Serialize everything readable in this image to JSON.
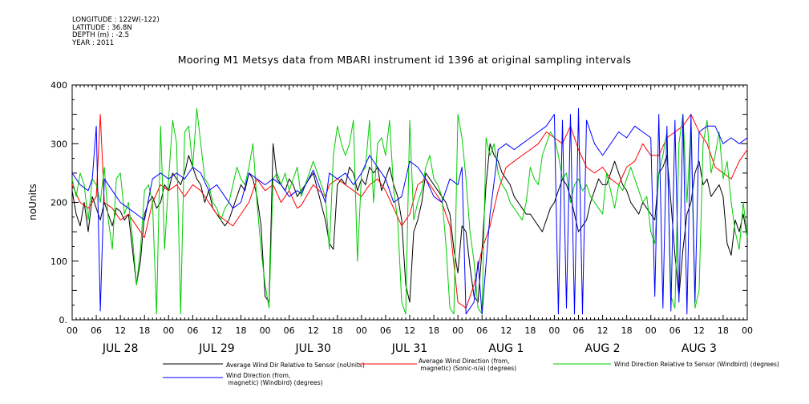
{
  "meta": {
    "longitude": "LONGITUDE : 122W(-122)",
    "latitude": "LATITUDE : 36.8N",
    "depth": "DEPTH (m) : -2.5",
    "year": "YEAR : 2011"
  },
  "chart_data": {
    "type": "line",
    "title": "Mooring M1 Metsys data from MBARI instrument id 1396 at original sampling intervals",
    "ylabel": "noUnits",
    "xlabel": "",
    "ylim": [
      0,
      400
    ],
    "yticks": [
      "0.",
      "100",
      "200",
      "300",
      "400"
    ],
    "xlim_hours": [
      0,
      168
    ],
    "hour_tick_labels": [
      "00",
      "06",
      "12",
      "18",
      "00",
      "06",
      "12",
      "18",
      "00",
      "06",
      "12",
      "18",
      "00",
      "06",
      "12",
      "18",
      "00",
      "06",
      "12",
      "18",
      "00",
      "06",
      "12",
      "18",
      "00",
      "06",
      "12",
      "18",
      "00"
    ],
    "day_labels": [
      "JUL 28",
      "JUL 29",
      "JUL 30",
      "JUL 31",
      "AUG  1",
      "AUG  2",
      "AUG  3"
    ],
    "grid": false,
    "legend_position": "bottom",
    "x_units": "hours from 2011-07-28 00:00",
    "series": [
      {
        "name": "Average Wind Dir Relative to Sensor (noUnits)",
        "color": "#000000",
        "x": [
          0,
          1,
          2,
          3,
          4,
          5,
          6,
          7,
          8,
          9,
          10,
          11,
          12,
          13,
          14,
          15,
          16,
          17,
          18,
          19,
          20,
          21,
          22,
          23,
          24,
          25,
          26,
          27,
          28,
          29,
          30,
          31,
          32,
          33,
          34,
          35,
          36,
          37,
          38,
          39,
          40,
          41,
          42,
          43,
          44,
          45,
          46,
          47,
          48,
          49,
          50,
          51,
          52,
          53,
          54,
          55,
          56,
          57,
          60,
          63,
          64,
          65,
          66,
          67,
          68,
          69,
          70,
          71,
          72,
          73,
          74,
          75,
          76,
          77,
          78,
          79,
          80,
          81,
          82,
          83,
          84,
          85,
          86,
          87,
          88,
          89,
          90,
          91,
          92,
          93,
          94,
          95,
          96,
          97,
          98,
          99,
          100,
          101,
          102,
          103,
          104,
          105,
          106,
          107,
          108,
          109,
          110,
          111,
          112,
          113,
          114,
          115,
          116,
          117,
          118,
          119,
          120,
          121,
          122,
          123,
          124,
          125,
          126,
          127,
          128,
          129,
          130,
          131,
          132,
          133,
          134,
          135,
          136,
          137,
          138,
          139,
          140,
          141,
          142,
          143,
          144,
          145,
          146,
          147,
          148,
          149,
          150,
          151,
          152,
          153,
          154,
          155,
          156,
          157,
          158,
          159,
          160,
          161,
          162,
          163,
          164,
          165,
          166,
          167,
          168
        ],
        "y": [
          220,
          180,
          160,
          200,
          150,
          210,
          190,
          170,
          200,
          180,
          160,
          190,
          185,
          170,
          180,
          120,
          60,
          100,
          180,
          200,
          210,
          190,
          200,
          230,
          220,
          250,
          240,
          230,
          250,
          280,
          260,
          240,
          230,
          200,
          220,
          190,
          180,
          170,
          160,
          170,
          190,
          210,
          230,
          220,
          250,
          240,
          210,
          160,
          40,
          30,
          300,
          240,
          230,
          220,
          240,
          230,
          210,
          220,
          250,
          170,
          130,
          120,
          230,
          240,
          230,
          260,
          250,
          220,
          240,
          230,
          260,
          250,
          260,
          220,
          240,
          260,
          230,
          210,
          170,
          60,
          30,
          150,
          170,
          200,
          250,
          240,
          230,
          220,
          210,
          200,
          180,
          120,
          80,
          160,
          150,
          90,
          40,
          30,
          120,
          230,
          300,
          280,
          270,
          250,
          240,
          230,
          210,
          200,
          190,
          180,
          180,
          170,
          160,
          150,
          170,
          190,
          200,
          220,
          240,
          230,
          210,
          180,
          150,
          160,
          170,
          200,
          220,
          240,
          230,
          230,
          250,
          270,
          250,
          230,
          220,
          200,
          190,
          180,
          200,
          190,
          180,
          170,
          250,
          260,
          280,
          200,
          110,
          40,
          120,
          180,
          200,
          250,
          270,
          230,
          240,
          210,
          220,
          230,
          210,
          130,
          110,
          170,
          150,
          180,
          140
        ]
      },
      {
        "name": "Average Wind Direction (from, magnetic) (Sonic-n/a) (degrees)",
        "color": "#ff0000",
        "x": [
          0,
          2,
          4,
          6,
          7,
          8,
          10,
          12,
          14,
          16,
          18,
          20,
          22,
          24,
          26,
          28,
          30,
          32,
          34,
          36,
          38,
          40,
          42,
          44,
          46,
          48,
          50,
          52,
          54,
          56,
          57,
          60,
          63,
          64,
          66,
          68,
          70,
          72,
          74,
          76,
          78,
          80,
          82,
          84,
          86,
          88,
          90,
          92,
          94,
          96,
          98,
          100,
          102,
          104,
          106,
          108,
          110,
          112,
          114,
          116,
          118,
          120,
          122,
          124,
          126,
          128,
          130,
          132,
          134,
          136,
          138,
          140,
          142,
          144,
          146,
          148,
          150,
          152,
          154,
          156,
          158,
          160,
          162,
          164,
          166,
          168
        ],
        "y": [
          230,
          200,
          190,
          210,
          350,
          200,
          190,
          170,
          180,
          160,
          140,
          200,
          230,
          220,
          230,
          210,
          230,
          220,
          200,
          180,
          170,
          160,
          180,
          200,
          240,
          220,
          230,
          200,
          220,
          190,
          195,
          230,
          210,
          230,
          240,
          230,
          220,
          210,
          230,
          240,
          220,
          190,
          160,
          180,
          230,
          240,
          220,
          200,
          160,
          30,
          20,
          60,
          120,
          160,
          220,
          260,
          270,
          280,
          290,
          300,
          320,
          310,
          300,
          330,
          290,
          260,
          250,
          260,
          240,
          230,
          260,
          270,
          300,
          280,
          280,
          310,
          320,
          330,
          350,
          320,
          300,
          260,
          250,
          240,
          270,
          290
        ]
      },
      {
        "name": "Wind Direction Relative to Sensor (Windbird) (degrees)",
        "color": "#00cc00",
        "x": [
          0,
          1,
          2,
          3,
          4,
          5,
          6,
          7,
          8,
          9,
          10,
          11,
          12,
          13,
          14,
          15,
          16,
          17,
          18,
          19,
          20,
          21,
          22,
          23,
          24,
          25,
          26,
          27,
          28,
          29,
          30,
          31,
          32,
          33,
          34,
          35,
          36,
          37,
          38,
          39,
          40,
          41,
          42,
          43,
          44,
          45,
          46,
          47,
          48,
          49,
          50,
          51,
          52,
          53,
          54,
          55,
          56,
          57,
          60,
          63,
          64,
          65,
          66,
          67,
          68,
          69,
          70,
          71,
          72,
          73,
          74,
          75,
          76,
          77,
          78,
          79,
          80,
          81,
          82,
          83,
          84,
          85,
          86,
          87,
          88,
          89,
          90,
          91,
          92,
          93,
          94,
          95,
          96,
          97,
          98,
          99,
          100,
          101,
          102,
          103,
          104,
          105,
          106,
          107,
          108,
          109,
          110,
          111,
          112,
          113,
          114,
          115,
          116,
          117,
          118,
          119,
          120,
          121,
          122,
          123,
          124,
          125,
          126,
          127,
          128,
          129,
          130,
          131,
          132,
          133,
          134,
          135,
          136,
          137,
          138,
          139,
          140,
          141,
          142,
          143,
          144,
          145,
          146,
          147,
          148,
          149,
          150,
          151,
          152,
          153,
          154,
          155,
          156,
          157,
          158,
          159,
          160,
          161,
          162,
          163,
          164,
          165,
          166,
          167,
          168
        ],
        "y": [
          240,
          210,
          250,
          230,
          170,
          240,
          230,
          200,
          260,
          170,
          120,
          240,
          250,
          180,
          200,
          140,
          60,
          120,
          220,
          230,
          200,
          10,
          330,
          120,
          240,
          340,
          300,
          10,
          320,
          330,
          260,
          360,
          300,
          240,
          230,
          200,
          190,
          170,
          190,
          200,
          230,
          260,
          240,
          230,
          260,
          300,
          200,
          120,
          60,
          20,
          240,
          250,
          230,
          250,
          220,
          240,
          260,
          210,
          270,
          210,
          120,
          280,
          330,
          300,
          280,
          300,
          340,
          100,
          250,
          260,
          340,
          200,
          300,
          310,
          280,
          340,
          220,
          170,
          30,
          10,
          340,
          170,
          200,
          220,
          260,
          280,
          240,
          230,
          210,
          130,
          20,
          10,
          350,
          310,
          240,
          150,
          100,
          20,
          10,
          310,
          280,
          300,
          250,
          230,
          220,
          200,
          190,
          180,
          170,
          200,
          260,
          240,
          230,
          280,
          300,
          320,
          310,
          280,
          240,
          250,
          200,
          230,
          240,
          220,
          230,
          210,
          200,
          190,
          180,
          250,
          220,
          190,
          230,
          220,
          240,
          260,
          240,
          220,
          200,
          210,
          150,
          130,
          250,
          280,
          320,
          40,
          20,
          300,
          350,
          200,
          330,
          20,
          50,
          300,
          340,
          250,
          280,
          320,
          240,
          270,
          200,
          150,
          120,
          200,
          140
        ]
      },
      {
        "name": "Wind Direction (from, magnetic) (Windbird) (degrees)",
        "color": "#0000ff",
        "x": [
          0,
          2,
          4,
          5,
          6,
          7,
          8,
          10,
          12,
          14,
          16,
          18,
          20,
          22,
          24,
          26,
          28,
          30,
          32,
          34,
          36,
          38,
          40,
          42,
          44,
          46,
          48,
          50,
          52,
          54,
          56,
          57,
          60,
          63,
          64,
          66,
          68,
          70,
          72,
          74,
          76,
          78,
          80,
          82,
          84,
          86,
          88,
          90,
          92,
          94,
          96,
          97,
          98,
          100,
          101,
          102,
          104,
          106,
          108,
          110,
          112,
          114,
          116,
          118,
          120,
          121,
          122,
          123,
          124,
          125,
          126,
          127,
          128,
          129,
          130,
          132,
          134,
          136,
          138,
          140,
          142,
          144,
          145,
          146,
          147,
          148,
          149,
          150,
          151,
          152,
          153,
          154,
          155,
          156,
          158,
          160,
          162,
          164,
          166,
          168
        ],
        "y": [
          250,
          230,
          220,
          240,
          330,
          15,
          240,
          220,
          200,
          190,
          180,
          170,
          240,
          250,
          240,
          250,
          240,
          260,
          250,
          220,
          230,
          210,
          190,
          200,
          250,
          240,
          230,
          240,
          230,
          210,
          220,
          215,
          255,
          200,
          250,
          240,
          250,
          230,
          250,
          280,
          260,
          240,
          200,
          210,
          270,
          260,
          240,
          210,
          200,
          240,
          230,
          260,
          10,
          30,
          100,
          10,
          180,
          290,
          300,
          290,
          300,
          310,
          320,
          330,
          350,
          10,
          340,
          20,
          350,
          10,
          360,
          10,
          340,
          320,
          300,
          280,
          300,
          320,
          310,
          330,
          320,
          310,
          40,
          350,
          20,
          330,
          15,
          340,
          30,
          350,
          10,
          350,
          30,
          320,
          330,
          330,
          300,
          310,
          300,
          310
        ]
      }
    ]
  }
}
